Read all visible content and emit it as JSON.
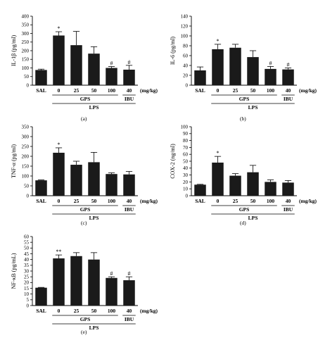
{
  "panels": [
    {
      "id": "a",
      "caption": "(a)",
      "chart_data": {
        "type": "bar",
        "ylabel": "IL-1β (pg/ml)",
        "ylim": [
          0,
          400
        ],
        "yticks": [
          0,
          50,
          100,
          150,
          200,
          250,
          300,
          350,
          400
        ],
        "categories": [
          "SAL",
          "0",
          "25",
          "50",
          "100",
          "40"
        ],
        "values": [
          88,
          288,
          232,
          183,
          100,
          90
        ],
        "errors": [
          5,
          22,
          80,
          40,
          8,
          25
        ],
        "significance": [
          "",
          "*",
          "",
          "",
          "#",
          "#"
        ],
        "unit_label": "(mg/kg)",
        "group_labels": {
          "gps": "GPS",
          "ibu": "IBU",
          "lps": "LPS"
        }
      }
    },
    {
      "id": "b",
      "caption": "(b)",
      "chart_data": {
        "type": "bar",
        "ylabel": "IL-6 (pg/ml)",
        "ylim": [
          0,
          140
        ],
        "yticks": [
          0,
          20,
          40,
          60,
          80,
          100,
          120,
          140
        ],
        "categories": [
          "SAL",
          "0",
          "25",
          "50",
          "100",
          "40"
        ],
        "values": [
          30,
          73,
          76,
          57,
          33,
          32
        ],
        "errors": [
          7,
          10,
          7,
          13,
          5,
          3
        ],
        "significance": [
          "",
          "*",
          "",
          "",
          "#",
          "#"
        ],
        "unit_label": "(mg/kg)",
        "group_labels": {
          "gps": "GPS",
          "ibu": "IBU",
          "lps": "LPS"
        }
      }
    },
    {
      "id": "c",
      "caption": "(c)",
      "chart_data": {
        "type": "bar",
        "ylabel": "TNF-α (pg/ml)",
        "ylim": [
          0,
          350
        ],
        "yticks": [
          0,
          50,
          100,
          150,
          200,
          250,
          300,
          350
        ],
        "categories": [
          "SAL",
          "0",
          "25",
          "50",
          "100",
          "40"
        ],
        "values": [
          78,
          218,
          157,
          170,
          110,
          108
        ],
        "errors": [
          2,
          25,
          18,
          50,
          6,
          15
        ],
        "significance": [
          "",
          "*",
          "",
          "",
          "",
          ""
        ],
        "unit_label": "(mg/kg)",
        "group_labels": {
          "gps": "GPS",
          "ibu": "IBU",
          "lps": "LPS"
        }
      }
    },
    {
      "id": "d",
      "caption": "(d)",
      "chart_data": {
        "type": "bar",
        "ylabel": "COX-2 (ng/ml)",
        "ylim": [
          0,
          100
        ],
        "yticks": [
          0,
          10,
          20,
          30,
          40,
          50,
          60,
          70,
          80,
          90,
          100
        ],
        "categories": [
          "SAL",
          "0",
          "25",
          "50",
          "100",
          "40"
        ],
        "values": [
          16,
          48,
          29,
          34,
          20,
          19
        ],
        "errors": [
          0.5,
          9,
          3,
          10,
          3,
          3
        ],
        "significance": [
          "",
          "*",
          "",
          "",
          "",
          ""
        ],
        "unit_label": "(mg/kg)",
        "group_labels": {
          "gps": "GPS",
          "ibu": "IBU",
          "lps": "LPS"
        }
      }
    },
    {
      "id": "e",
      "caption": "(e)",
      "chart_data": {
        "type": "bar",
        "ylabel": "NF-κB (pg/mL)",
        "ylim": [
          0,
          60
        ],
        "yticks": [
          0,
          5,
          10,
          15,
          20,
          25,
          30,
          35,
          40,
          45,
          50,
          55,
          60
        ],
        "categories": [
          "SAL",
          "0",
          "25",
          "50",
          "100",
          "40"
        ],
        "values": [
          15.5,
          41,
          43,
          40,
          24,
          22
        ],
        "errors": [
          0.3,
          3,
          3,
          6,
          1,
          3
        ],
        "significance": [
          "",
          "**",
          "",
          "",
          "#",
          "#"
        ],
        "unit_label": "(mg/kg)",
        "group_labels": {
          "gps": "GPS",
          "ibu": "IBU",
          "lps": "LPS"
        }
      }
    }
  ]
}
